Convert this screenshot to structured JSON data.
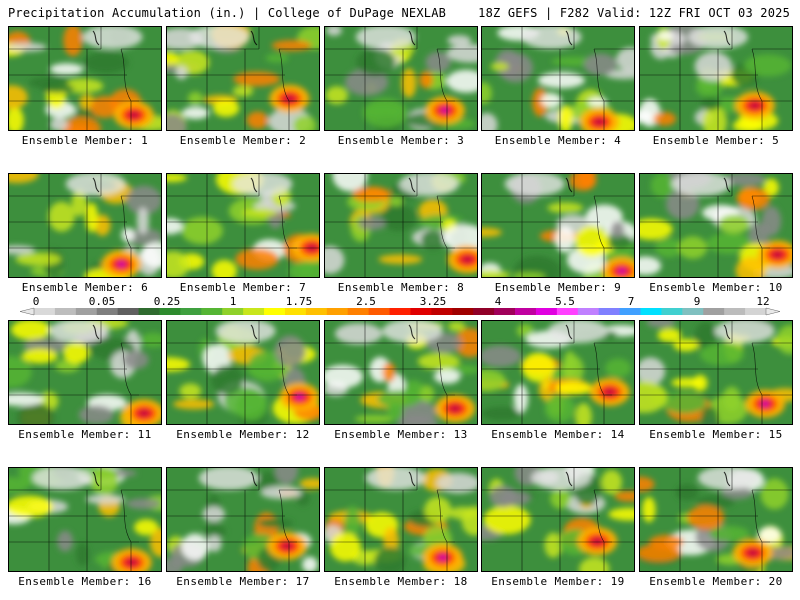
{
  "header": {
    "title_left": "Precipitation Accumulation (in.) | College of DuPage NEXLAB",
    "title_right": "18Z GEFS | F282 Valid: 12Z FRI OCT 03 2025"
  },
  "panels": [
    {
      "label": "Ensemble Member: 1",
      "member": 1
    },
    {
      "label": "Ensemble Member: 2",
      "member": 2
    },
    {
      "label": "Ensemble Member: 3",
      "member": 3
    },
    {
      "label": "Ensemble Member: 4",
      "member": 4
    },
    {
      "label": "Ensemble Member: 5",
      "member": 5
    },
    {
      "label": "Ensemble Member: 6",
      "member": 6
    },
    {
      "label": "Ensemble Member: 7",
      "member": 7
    },
    {
      "label": "Ensemble Member: 8",
      "member": 8
    },
    {
      "label": "Ensemble Member: 9",
      "member": 9
    },
    {
      "label": "Ensemble Member: 10",
      "member": 10
    },
    {
      "label": "Ensemble Member: 11",
      "member": 11
    },
    {
      "label": "Ensemble Member: 12",
      "member": 12
    },
    {
      "label": "Ensemble Member: 13",
      "member": 13
    },
    {
      "label": "Ensemble Member: 14",
      "member": 14
    },
    {
      "label": "Ensemble Member: 15",
      "member": 15
    },
    {
      "label": "Ensemble Member: 16",
      "member": 16
    },
    {
      "label": "Ensemble Member: 17",
      "member": 17
    },
    {
      "label": "Ensemble Member: 18",
      "member": 18
    },
    {
      "label": "Ensemble Member: 19",
      "member": 19
    },
    {
      "label": "Ensemble Member: 20",
      "member": 20
    }
  ],
  "colorbar": {
    "tick_labels": [
      "0",
      "0.05",
      "0.25",
      "1",
      "1.75",
      "2.5",
      "3.25",
      "4",
      "5.5",
      "7",
      "9",
      "12"
    ],
    "colors": [
      "#d9d9d9",
      "#bdbdbd",
      "#a0a0a0",
      "#7f7f7f",
      "#606060",
      "#2f6b2f",
      "#2e8b2e",
      "#3fa03f",
      "#55b534",
      "#8fd12a",
      "#c8e61c",
      "#ffff00",
      "#ffe000",
      "#ffc000",
      "#ffa000",
      "#ff8000",
      "#ff5a00",
      "#ff2000",
      "#e00000",
      "#c00000",
      "#a00000",
      "#900028",
      "#a0005a",
      "#c000a0",
      "#e000e0",
      "#ff40ff",
      "#c080ff",
      "#8080ff",
      "#40a0ff",
      "#00e0ff",
      "#40d0d0",
      "#80c0c0",
      "#a0a0a0",
      "#bcbcbc",
      "#d4d4d4"
    ]
  }
}
